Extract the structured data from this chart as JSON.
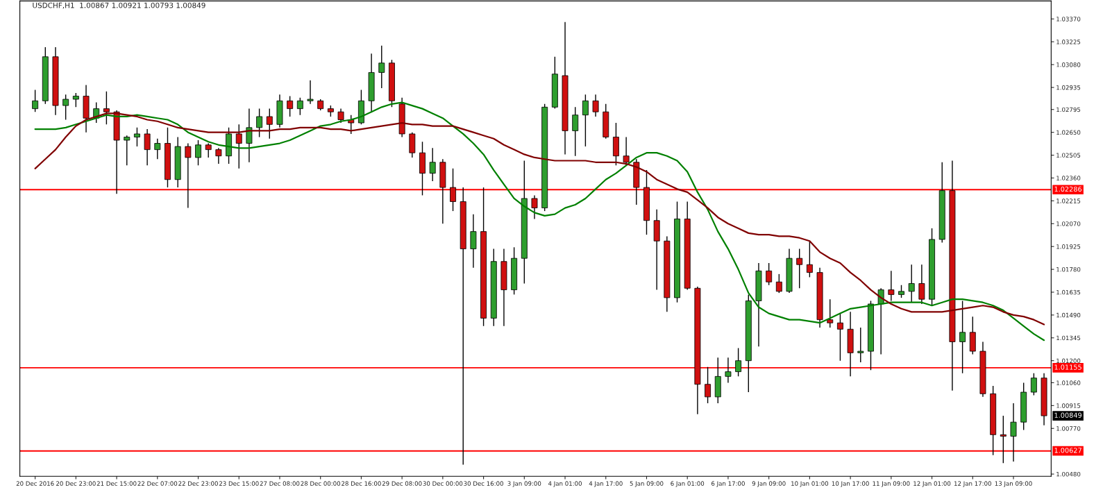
{
  "chart_data": {
    "type": "candlestick",
    "title": "USDCHF,H1  1.00867 1.00921 1.00793 1.00849",
    "categories": [
      "20 Dec 2016",
      null,
      null,
      null,
      "20 Dec 23:00",
      null,
      null,
      null,
      "21 Dec 15:00",
      null,
      null,
      null,
      "22 Dec 07:00",
      null,
      null,
      null,
      "22 Dec 23:00",
      null,
      null,
      null,
      "23 Dec 15:00",
      null,
      null,
      null,
      "27 Dec 08:00",
      null,
      null,
      null,
      "28 Dec 00:00",
      null,
      null,
      null,
      "28 Dec 16:00",
      null,
      null,
      null,
      "29 Dec 08:00",
      null,
      null,
      null,
      "30 Dec 00:00",
      null,
      null,
      null,
      "30 Dec 16:00",
      null,
      null,
      null,
      "3 Jan 09:00",
      null,
      null,
      null,
      "4 Jan 01:00",
      null,
      null,
      null,
      "4 Jan 17:00",
      null,
      null,
      null,
      "5 Jan 09:00",
      null,
      null,
      null,
      "6 Jan 01:00",
      null,
      null,
      null,
      "6 Jan 17:00",
      null,
      null,
      null,
      "9 Jan 09:00",
      null,
      null,
      null,
      "10 Jan 01:00",
      null,
      null,
      null,
      "10 Jan 17:00",
      null,
      null,
      null,
      "11 Jan 09:00",
      null,
      null,
      null,
      "12 Jan 01:00",
      null,
      null,
      null,
      "12 Jan 17:00",
      null,
      null,
      null,
      "13 Jan 09:00",
      null,
      null,
      null
    ],
    "ohlc": [
      [
        1.028,
        1.0292,
        1.0278,
        1.0285
      ],
      [
        1.0285,
        1.0319,
        1.0283,
        1.0313
      ],
      [
        1.0313,
        1.0319,
        1.0276,
        1.0282
      ],
      [
        1.0282,
        1.0289,
        1.0273,
        1.0286
      ],
      [
        1.0286,
        1.029,
        1.0281,
        1.0288
      ],
      [
        1.0288,
        1.0295,
        1.0265,
        1.0274
      ],
      [
        1.0274,
        1.0284,
        1.0271,
        1.028
      ],
      [
        1.028,
        1.0291,
        1.027,
        1.0278
      ],
      [
        1.0278,
        1.0279,
        1.0226,
        1.026
      ],
      [
        1.026,
        1.0263,
        1.0244,
        1.0262
      ],
      [
        1.0262,
        1.0268,
        1.0256,
        1.0264
      ],
      [
        1.0264,
        1.0267,
        1.0244,
        1.0254
      ],
      [
        1.0254,
        1.0261,
        1.0248,
        1.0258
      ],
      [
        1.0258,
        1.0268,
        1.023,
        1.0235
      ],
      [
        1.0235,
        1.0262,
        1.023,
        1.0256
      ],
      [
        1.0256,
        1.0258,
        1.0217,
        1.0249
      ],
      [
        1.0249,
        1.026,
        1.0244,
        1.0257
      ],
      [
        1.0257,
        1.0258,
        1.0249,
        1.0254
      ],
      [
        1.0254,
        1.0255,
        1.0245,
        1.025
      ],
      [
        1.025,
        1.0268,
        1.0245,
        1.0264
      ],
      [
        1.0264,
        1.027,
        1.0242,
        1.0258
      ],
      [
        1.0258,
        1.028,
        1.0246,
        1.0268
      ],
      [
        1.0268,
        1.028,
        1.0262,
        1.0275
      ],
      [
        1.0275,
        1.028,
        1.0261,
        1.027
      ],
      [
        1.027,
        1.0289,
        1.0268,
        1.0285
      ],
      [
        1.0285,
        1.0288,
        1.0275,
        1.028
      ],
      [
        1.028,
        1.0287,
        1.0276,
        1.0285
      ],
      [
        1.0285,
        1.0298,
        1.0283,
        1.0286
      ],
      [
        1.0285,
        1.0286,
        1.0279,
        1.028
      ],
      [
        1.028,
        1.0282,
        1.0275,
        1.0278
      ],
      [
        1.0278,
        1.028,
        1.0271,
        1.0273
      ],
      [
        1.0273,
        1.0276,
        1.0264,
        1.0271
      ],
      [
        1.0271,
        1.0292,
        1.027,
        1.0285
      ],
      [
        1.0285,
        1.0315,
        1.0278,
        1.0303
      ],
      [
        1.0303,
        1.032,
        1.0293,
        1.0309
      ],
      [
        1.0309,
        1.0311,
        1.0281,
        1.0285
      ],
      [
        1.0283,
        1.0287,
        1.0262,
        1.0264
      ],
      [
        1.0264,
        1.0265,
        1.0249,
        1.0252
      ],
      [
        1.0252,
        1.0259,
        1.0225,
        1.0239
      ],
      [
        1.0239,
        1.0255,
        1.0234,
        1.0246
      ],
      [
        1.0246,
        1.0248,
        1.0207,
        1.023
      ],
      [
        1.023,
        1.0242,
        1.0215,
        1.0221
      ],
      [
        1.0221,
        1.023,
        1.0054,
        1.0191
      ],
      [
        1.0191,
        1.0213,
        1.0179,
        1.0202
      ],
      [
        1.0202,
        1.023,
        1.0142,
        1.0147
      ],
      [
        1.0147,
        1.0191,
        1.0142,
        1.0183
      ],
      [
        1.0183,
        1.0191,
        1.0142,
        1.0165
      ],
      [
        1.0165,
        1.0192,
        1.0162,
        1.0185
      ],
      [
        1.0185,
        1.0247,
        1.0169,
        1.0223
      ],
      [
        1.0223,
        1.0225,
        1.021,
        1.0217
      ],
      [
        1.0217,
        1.0283,
        1.0215,
        1.0281
      ],
      [
        1.0281,
        1.0313,
        1.028,
        1.0302
      ],
      [
        1.0301,
        1.0335,
        1.0251,
        1.0266
      ],
      [
        1.0266,
        1.0281,
        1.025,
        1.0276
      ],
      [
        1.0276,
        1.0289,
        1.0256,
        1.0285
      ],
      [
        1.0285,
        1.0289,
        1.0275,
        1.0278
      ],
      [
        1.0278,
        1.0283,
        1.0261,
        1.0262
      ],
      [
        1.0262,
        1.0271,
        1.0244,
        1.025
      ],
      [
        1.025,
        1.0262,
        1.0244,
        1.0246
      ],
      [
        1.0246,
        1.0248,
        1.0219,
        1.023
      ],
      [
        1.023,
        1.0241,
        1.02,
        1.0209
      ],
      [
        1.0209,
        1.0216,
        1.0165,
        1.0196
      ],
      [
        1.0196,
        1.0199,
        1.0151,
        1.016
      ],
      [
        1.016,
        1.0221,
        1.0157,
        1.021
      ],
      [
        1.021,
        1.0221,
        1.0165,
        1.0166
      ],
      [
        1.0166,
        1.0167,
        1.0086,
        1.0105
      ],
      [
        1.0105,
        1.0116,
        1.0093,
        1.0097
      ],
      [
        1.0097,
        1.0122,
        1.0093,
        1.011
      ],
      [
        1.011,
        1.0122,
        1.0106,
        1.0113
      ],
      [
        1.0113,
        1.0128,
        1.011,
        1.012
      ],
      [
        1.012,
        1.0162,
        1.01,
        1.0158
      ],
      [
        1.0158,
        1.0182,
        1.0129,
        1.0177
      ],
      [
        1.0177,
        1.0182,
        1.0168,
        1.017
      ],
      [
        1.017,
        1.0175,
        1.0163,
        1.0164
      ],
      [
        1.0164,
        1.0191,
        1.0163,
        1.0185
      ],
      [
        1.0185,
        1.0191,
        1.0166,
        1.0181
      ],
      [
        1.0181,
        1.0196,
        1.0173,
        1.0176
      ],
      [
        1.0176,
        1.0179,
        1.0141,
        1.0146
      ],
      [
        1.0146,
        1.0159,
        1.0141,
        1.0144
      ],
      [
        1.0144,
        1.015,
        1.012,
        1.014
      ],
      [
        1.014,
        1.0151,
        1.011,
        1.0125
      ],
      [
        1.0125,
        1.0141,
        1.0119,
        1.0126
      ],
      [
        1.0126,
        1.0158,
        1.0114,
        1.0156
      ],
      [
        1.0156,
        1.0166,
        1.0124,
        1.0165
      ],
      [
        1.0165,
        1.0177,
        1.0158,
        1.0162
      ],
      [
        1.0162,
        1.0168,
        1.016,
        1.0164
      ],
      [
        1.0164,
        1.0181,
        1.0157,
        1.0169
      ],
      [
        1.0169,
        1.0181,
        1.0156,
        1.0159
      ],
      [
        1.0159,
        1.0204,
        1.0155,
        1.0197
      ],
      [
        1.0197,
        1.0246,
        1.0195,
        1.0228
      ],
      [
        1.0228,
        1.0247,
        1.0101,
        1.0132
      ],
      [
        1.0132,
        1.0158,
        1.0112,
        1.0138
      ],
      [
        1.0138,
        1.0148,
        1.0124,
        1.0126
      ],
      [
        1.0126,
        1.0132,
        1.0097,
        1.0099
      ],
      [
        1.0099,
        1.0104,
        1.006,
        1.0073
      ],
      [
        1.0073,
        1.0085,
        1.0055,
        1.0072
      ],
      [
        1.0072,
        1.0093,
        1.0056,
        1.0081
      ],
      [
        1.0081,
        1.0106,
        1.0076,
        1.01
      ],
      [
        1.01,
        1.0112,
        1.0098,
        1.0109
      ],
      [
        1.0109,
        1.0112,
        1.0079,
        1.0085
      ]
    ],
    "series": [
      {
        "type": "line",
        "color": "#008000",
        "values": [
          1.0267,
          1.0267,
          1.0267,
          1.0268,
          1.027,
          1.0272,
          1.0274,
          1.0276,
          1.0275,
          1.0275,
          1.0276,
          1.0275,
          1.0274,
          1.0273,
          1.027,
          1.0265,
          1.0262,
          1.0259,
          1.0257,
          1.0256,
          1.0255,
          1.0255,
          1.0256,
          1.0257,
          1.0258,
          1.026,
          1.0263,
          1.0266,
          1.0269,
          1.027,
          1.0272,
          1.0273,
          1.0275,
          1.0278,
          1.0281,
          1.0283,
          1.0284,
          1.0282,
          1.028,
          1.0277,
          1.0274,
          1.0269,
          1.0264,
          1.0258,
          1.0251,
          1.0241,
          1.0232,
          1.0223,
          1.0218,
          1.0214,
          1.0212,
          1.0213,
          1.0217,
          1.0219,
          1.0223,
          1.0229,
          1.0235,
          1.0239,
          1.0244,
          1.0249,
          1.0252,
          1.0252,
          1.025,
          1.0247,
          1.024,
          1.0227,
          1.0216,
          1.0202,
          1.0191,
          1.0178,
          1.0163,
          1.0154,
          1.015,
          1.0148,
          1.0146,
          1.0146,
          1.0145,
          1.0144,
          1.0147,
          1.015,
          1.0153,
          1.0154,
          1.0155,
          1.0156,
          1.0157,
          1.0157,
          1.0157,
          1.0157,
          1.0155,
          1.0157,
          1.0159,
          1.0159,
          1.0158,
          1.0157,
          1.0155,
          1.0152,
          1.0147,
          1.0142,
          1.0137,
          1.0133
        ]
      },
      {
        "type": "line",
        "color": "#800000",
        "values": [
          1.0242,
          1.0248,
          1.0254,
          1.0262,
          1.0269,
          1.0273,
          1.0275,
          1.0277,
          1.0277,
          1.0276,
          1.0275,
          1.0273,
          1.0272,
          1.027,
          1.0268,
          1.0267,
          1.0266,
          1.0265,
          1.0265,
          1.0265,
          1.0265,
          1.0266,
          1.0266,
          1.0266,
          1.0267,
          1.0267,
          1.0268,
          1.0268,
          1.0268,
          1.0267,
          1.0267,
          1.0266,
          1.0267,
          1.0268,
          1.0269,
          1.027,
          1.0271,
          1.027,
          1.027,
          1.0269,
          1.0269,
          1.0269,
          1.0267,
          1.0265,
          1.0263,
          1.0261,
          1.0257,
          1.0254,
          1.0251,
          1.0249,
          1.0248,
          1.0247,
          1.0247,
          1.0247,
          1.0247,
          1.0246,
          1.0246,
          1.0246,
          1.0245,
          1.0243,
          1.024,
          1.0235,
          1.0232,
          1.0229,
          1.0227,
          1.0222,
          1.0217,
          1.0211,
          1.0207,
          1.0204,
          1.0201,
          1.02,
          1.02,
          1.0199,
          1.0199,
          1.0198,
          1.0196,
          1.0189,
          1.0185,
          1.0182,
          1.0176,
          1.0171,
          1.0165,
          1.016,
          1.0156,
          1.0153,
          1.0151,
          1.0151,
          1.0151,
          1.0151,
          1.0152,
          1.0153,
          1.0154,
          1.0155,
          1.0154,
          1.0151,
          1.0149,
          1.0148,
          1.0146,
          1.0143
        ]
      }
    ],
    "ylim": [
      1.00466,
      1.03484
    ],
    "yticks": [
      {
        "value": 1.0048,
        "label": "1.00480"
      },
      {
        "value": 1.0077,
        "label": "1.00770"
      },
      {
        "value": 1.00915,
        "label": "1.00915"
      },
      {
        "value": 1.0106,
        "label": "1.01060"
      },
      {
        "value": 1.012,
        "label": "1.01200"
      },
      {
        "value": 1.01345,
        "label": "1.01345"
      },
      {
        "value": 1.0149,
        "label": "1.01490"
      },
      {
        "value": 1.01635,
        "label": "1.01635"
      },
      {
        "value": 1.0178,
        "label": "1.01780"
      },
      {
        "value": 1.01925,
        "label": "1.01925"
      },
      {
        "value": 1.0207,
        "label": "1.02070"
      },
      {
        "value": 1.02215,
        "label": "1.02215"
      },
      {
        "value": 1.0236,
        "label": "1.02360"
      },
      {
        "value": 1.02505,
        "label": "1.02505"
      },
      {
        "value": 1.0265,
        "label": "1.02650"
      },
      {
        "value": 1.02795,
        "label": "1.02795"
      },
      {
        "value": 1.02935,
        "label": "1.02935"
      },
      {
        "value": 1.0308,
        "label": "1.03080"
      },
      {
        "value": 1.03225,
        "label": "1.03225"
      },
      {
        "value": 1.0337,
        "label": "1.03370"
      }
    ],
    "ref_lines": [
      {
        "axis": "y",
        "value": 1.02286,
        "label": "1.02286",
        "color": "#ff0000"
      },
      {
        "axis": "y",
        "value": 1.01155,
        "label": "1.01155",
        "color": "#ff0000"
      },
      {
        "axis": "y",
        "value": 1.00627,
        "label": "1.00627",
        "color": "#ff0000"
      }
    ],
    "annotations": [
      "1.00849"
    ],
    "grid": false,
    "legend": false
  }
}
